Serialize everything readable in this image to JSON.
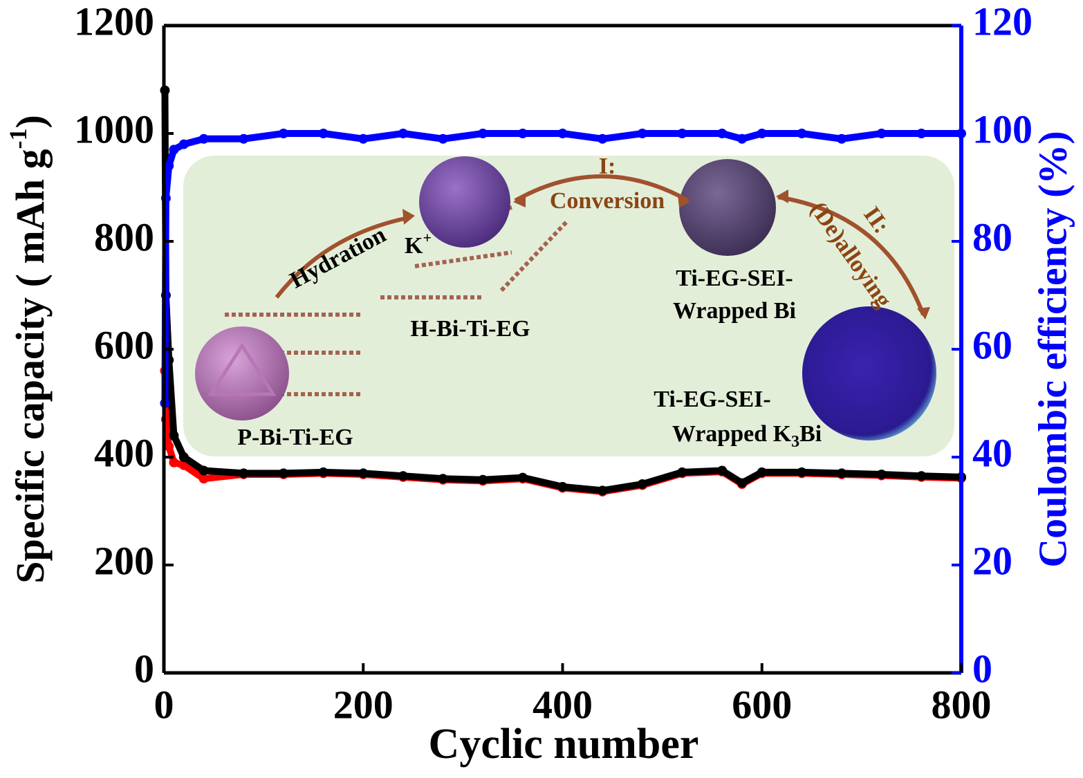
{
  "chart_data": {
    "type": "line",
    "x_label": "Cyclic number",
    "y_label": {
      "text": "Specific capacity ( mAh g",
      "sup": "-1",
      "end": ")"
    },
    "y2_label": "Coulombic efficiency (%)",
    "x": [
      1,
      2,
      5,
      10,
      20,
      40,
      80,
      120,
      160,
      200,
      240,
      280,
      320,
      360,
      400,
      440,
      480,
      520,
      560,
      580,
      600,
      640,
      680,
      720,
      760,
      800
    ],
    "series": [
      {
        "color": "#ff0000",
        "values": [
          560,
          470,
          420,
          390,
          385,
          360,
          368,
          368,
          370,
          368,
          363,
          358,
          356,
          360,
          343,
          336,
          348,
          370,
          373,
          350,
          370,
          370,
          368,
          366,
          363,
          361
        ]
      },
      {
        "color": "#000000",
        "values": [
          1080,
          700,
          580,
          440,
          400,
          375,
          370,
          370,
          372,
          370,
          365,
          360,
          358,
          362,
          345,
          338,
          350,
          372,
          375,
          352,
          372,
          372,
          370,
          368,
          365,
          363
        ]
      },
      {
        "color": "#0000ff",
        "axis": "y2",
        "values": [
          50,
          88,
          94,
          97,
          98,
          99,
          99,
          100,
          100,
          99,
          100,
          99,
          100,
          100,
          100,
          99,
          100,
          100,
          100,
          99,
          100,
          100,
          99,
          100,
          100,
          100
        ]
      }
    ],
    "xlim": [
      0,
      800
    ],
    "xticks": [
      0,
      200,
      400,
      600,
      800
    ],
    "ylim": [
      0,
      1200
    ],
    "yticks": [
      0,
      200,
      400,
      600,
      800,
      1000,
      1200
    ],
    "y2lim": [
      0,
      120
    ],
    "y2ticks": [
      0,
      20,
      40,
      60,
      80,
      100,
      120
    ],
    "inset": {
      "hydration": "Hydration",
      "k_ion": {
        "text": "K",
        "sup": "+"
      },
      "step1": [
        "I:",
        "Conversion"
      ],
      "step2": [
        "II:",
        "(De)alloying"
      ],
      "p_label": "P-Bi-Ti-EG",
      "h_label": "H-Bi-Ti-EG",
      "bi_label": [
        "Ti-EG-SEI-",
        "Wrapped Bi"
      ],
      "k3bi_label": {
        "line1": "Ti-EG-SEI-",
        "text": "Wrapped K",
        "sub": "3",
        "end": "Bi"
      }
    }
  }
}
